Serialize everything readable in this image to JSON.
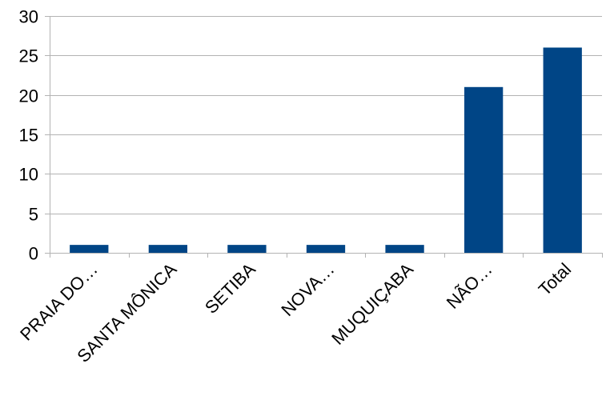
{
  "chart_data": {
    "type": "bar",
    "categories": [
      "PRAIA DO…",
      "SANTA MÔNICA",
      "SETIBA",
      "NOVA…",
      "MUQUIÇABA",
      "NÃO…",
      "Total"
    ],
    "values": [
      1,
      1,
      1,
      1,
      1,
      21,
      26
    ],
    "title": "",
    "xlabel": "",
    "ylabel": "",
    "ylim": [
      0,
      30
    ],
    "yticks": [
      0,
      5,
      10,
      15,
      20,
      25,
      30
    ],
    "grid": true,
    "legend": "none",
    "bar_color": "#004586",
    "grid_color": "#b3b3b3"
  }
}
